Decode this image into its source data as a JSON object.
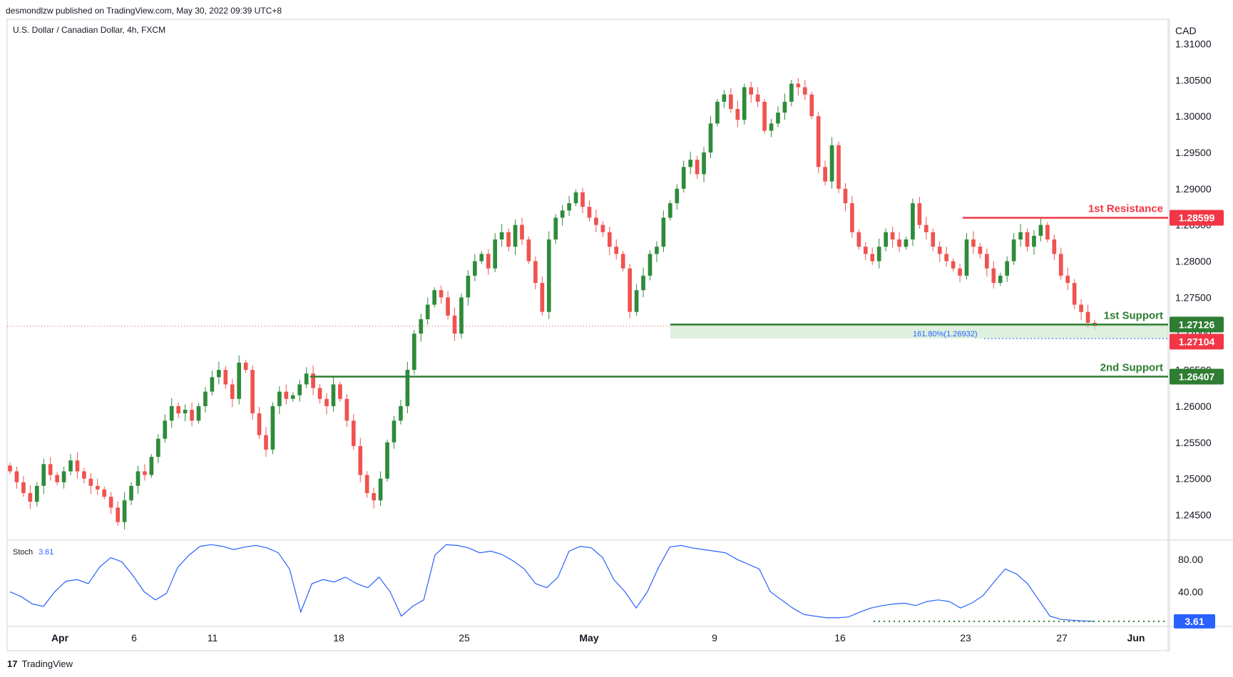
{
  "header": {
    "published": "desmondlzw published on TradingView.com, May 30, 2022 09:39 UTC+8"
  },
  "footer": {
    "logo_mark": "17",
    "brand": "TradingView"
  },
  "chart_data": {
    "type": "candlestick",
    "symbol_label": "U.S. Dollar / Canadian Dollar, 4h, FXCM",
    "currency": "CAD",
    "price_axis_ticks": [
      "1.31000",
      "1.30500",
      "1.30000",
      "1.29500",
      "1.29000",
      "1.28500",
      "1.28000",
      "1.27500",
      "1.27000",
      "1.26500",
      "1.26000",
      "1.25500",
      "1.25000",
      "1.24500"
    ],
    "price_range": [
      1.2418,
      1.3125
    ],
    "time_axis_labels": [
      "Apr",
      "6",
      "11",
      "18",
      "25",
      "May",
      "9",
      "16",
      "23",
      "27",
      "Jun"
    ],
    "levels": [
      {
        "label": "1st Resistance",
        "value": 1.28599,
        "value_text": "1.28599",
        "color": "#f23645"
      },
      {
        "label": "1st Support",
        "value": 1.27126,
        "value_text": "1.27126",
        "color": "#2e7d32"
      },
      {
        "label": "2nd Support",
        "value": 1.26407,
        "value_text": "1.26407",
        "color": "#2e7d32"
      }
    ],
    "last_price": {
      "value": 1.27104,
      "value_text": "1.27104",
      "color": "#f23645"
    },
    "fib_label": "161.80%(1.26932)",
    "fib_value": 1.26932,
    "colors": {
      "up": "#26a69a",
      "up_body": "#2e8b3a",
      "down": "#ef5350",
      "level_green": "#2e7d32",
      "level_red": "#f23645",
      "stoch_line": "#2962ff"
    },
    "close_path": [
      1.251,
      1.2495,
      1.248,
      1.2468,
      1.249,
      1.252,
      1.2505,
      1.2495,
      1.251,
      1.2525,
      1.251,
      1.25,
      1.249,
      1.2485,
      1.2475,
      1.246,
      1.244,
      1.247,
      1.249,
      1.251,
      1.2505,
      1.253,
      1.2555,
      1.258,
      1.26,
      1.259,
      1.2595,
      1.258,
      1.26,
      1.262,
      1.264,
      1.265,
      1.263,
      1.261,
      1.266,
      1.265,
      1.259,
      1.256,
      1.254,
      1.26,
      1.262,
      1.261,
      1.2615,
      1.263,
      1.2645,
      1.2625,
      1.261,
      1.26,
      1.263,
      1.261,
      1.258,
      1.2545,
      1.2505,
      1.248,
      1.247,
      1.25,
      1.255,
      1.258,
      1.26,
      1.265,
      1.27,
      1.272,
      1.274,
      1.276,
      1.275,
      1.2725,
      1.27,
      1.275,
      1.278,
      1.28,
      1.281,
      1.279,
      1.283,
      1.284,
      1.282,
      1.285,
      1.283,
      1.28,
      1.277,
      1.273,
      1.283,
      1.286,
      1.287,
      1.288,
      1.2895,
      1.2875,
      1.286,
      1.285,
      1.284,
      1.282,
      1.281,
      1.279,
      1.273,
      1.276,
      1.278,
      1.281,
      1.282,
      1.286,
      1.288,
      1.29,
      1.293,
      1.294,
      1.292,
      1.295,
      1.299,
      1.302,
      1.303,
      1.301,
      1.2995,
      1.304,
      1.303,
      1.302,
      1.298,
      1.299,
      1.3005,
      1.302,
      1.3045,
      1.304,
      1.303,
      1.3,
      1.293,
      1.291,
      1.296,
      1.29,
      1.288,
      1.284,
      1.282,
      1.281,
      1.28,
      1.282,
      1.284,
      1.283,
      1.282,
      1.283,
      1.288,
      1.285,
      1.284,
      1.282,
      1.281,
      1.28,
      1.279,
      1.278,
      1.283,
      1.282,
      1.281,
      1.279,
      1.277,
      1.278,
      1.28,
      1.283,
      1.284,
      1.282,
      1.2835,
      1.285,
      1.283,
      1.281,
      1.278,
      1.277,
      1.274,
      1.273,
      1.2715,
      1.271
    ],
    "stochastic": {
      "label": "Stoch",
      "value_text": "3.61",
      "value": 3.61,
      "ticks": [
        "80.00",
        "40.00"
      ],
      "values": [
        40,
        34,
        25,
        22,
        40,
        53,
        55,
        50,
        70,
        82,
        77,
        60,
        40,
        30,
        38,
        70,
        85,
        96,
        98,
        96,
        92,
        95,
        97,
        94,
        88,
        68,
        15,
        50,
        55,
        52,
        58,
        50,
        45,
        58,
        40,
        10,
        22,
        30,
        85,
        98,
        97,
        94,
        88,
        90,
        86,
        78,
        68,
        50,
        45,
        58,
        90,
        96,
        94,
        82,
        55,
        40,
        20,
        40,
        70,
        95,
        97,
        94,
        92,
        90,
        88,
        80,
        74,
        68,
        40,
        30,
        20,
        12,
        10,
        8,
        8,
        9,
        15,
        20,
        23,
        25,
        26,
        23,
        28,
        30,
        28,
        20,
        26,
        35,
        52,
        68,
        62,
        50,
        30,
        10,
        6,
        5,
        4,
        3.61
      ]
    }
  }
}
